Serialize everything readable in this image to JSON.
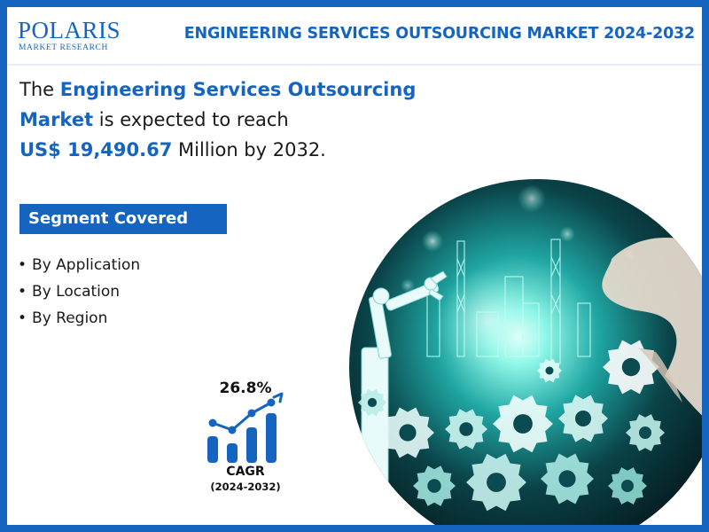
{
  "brand": {
    "name": "POLARIS",
    "tagline": "MARKET RESEARCH"
  },
  "header": {
    "title": "ENGINEERING SERVICES OUTSOURCING MARKET 2024-2032"
  },
  "headline": {
    "part1": "The ",
    "highlight1": "Engineering Services Outsourcing Market",
    "part2": " is expected to reach ",
    "highlight2": "US$ 19,490.67",
    "part3": " Million by 2032."
  },
  "segments": {
    "title": "Segment Covered",
    "bullet": "•",
    "items": [
      "By Application",
      "By Location",
      "By Region"
    ]
  },
  "cagr": {
    "value": "26.8%",
    "label": "CAGR",
    "period": "(2024-2032)"
  },
  "colors": {
    "brand_blue": "#1565c0",
    "illustration_glow": "#7ff7e8",
    "illustration_dark": "#06262b"
  },
  "icons": {
    "cagr_chart": "growth-bar-chart-icon",
    "illustration": "industrial-gears-robot-arm-illustration"
  }
}
